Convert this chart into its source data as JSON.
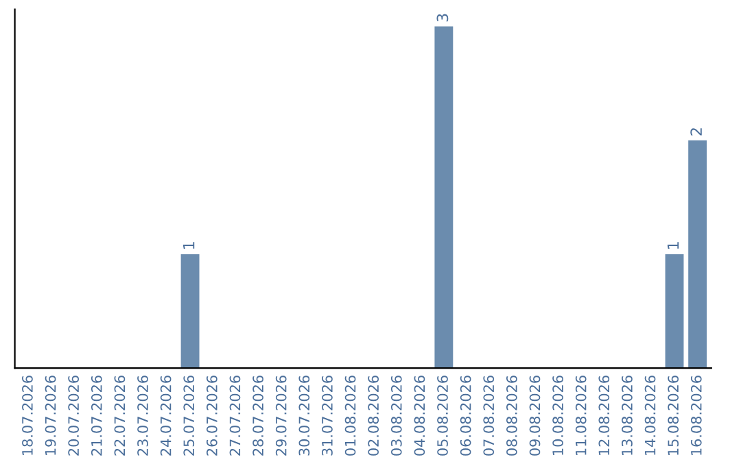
{
  "chart_data": {
    "type": "bar",
    "categories": [
      "18.07.2026",
      "19.07.2026",
      "20.07.2026",
      "21.07.2026",
      "22.07.2026",
      "23.07.2026",
      "24.07.2026",
      "25.07.2026",
      "26.07.2026",
      "27.07.2026",
      "28.07.2026",
      "29.07.2026",
      "30.07.2026",
      "31.07.2026",
      "01.08.2026",
      "02.08.2026",
      "03.08.2026",
      "04.08.2026",
      "05.08.2026",
      "06.08.2026",
      "07.08.2026",
      "08.08.2026",
      "09.08.2026",
      "10.08.2026",
      "11.08.2026",
      "12.08.2026",
      "13.08.2026",
      "14.08.2026",
      "15.08.2026",
      "16.08.2026"
    ],
    "values": [
      0,
      0,
      0,
      0,
      0,
      0,
      0,
      1,
      0,
      0,
      0,
      0,
      0,
      0,
      0,
      0,
      0,
      0,
      3,
      0,
      0,
      0,
      0,
      0,
      0,
      0,
      0,
      0,
      1,
      2
    ],
    "value_labels": [
      null,
      null,
      null,
      null,
      null,
      null,
      null,
      "1",
      null,
      null,
      null,
      null,
      null,
      null,
      null,
      null,
      null,
      null,
      "3",
      null,
      null,
      null,
      null,
      null,
      null,
      null,
      null,
      null,
      "1",
      "2"
    ],
    "color": "#6b8cae",
    "tick_labels": "x",
    "grid": false,
    "legend": false
  }
}
